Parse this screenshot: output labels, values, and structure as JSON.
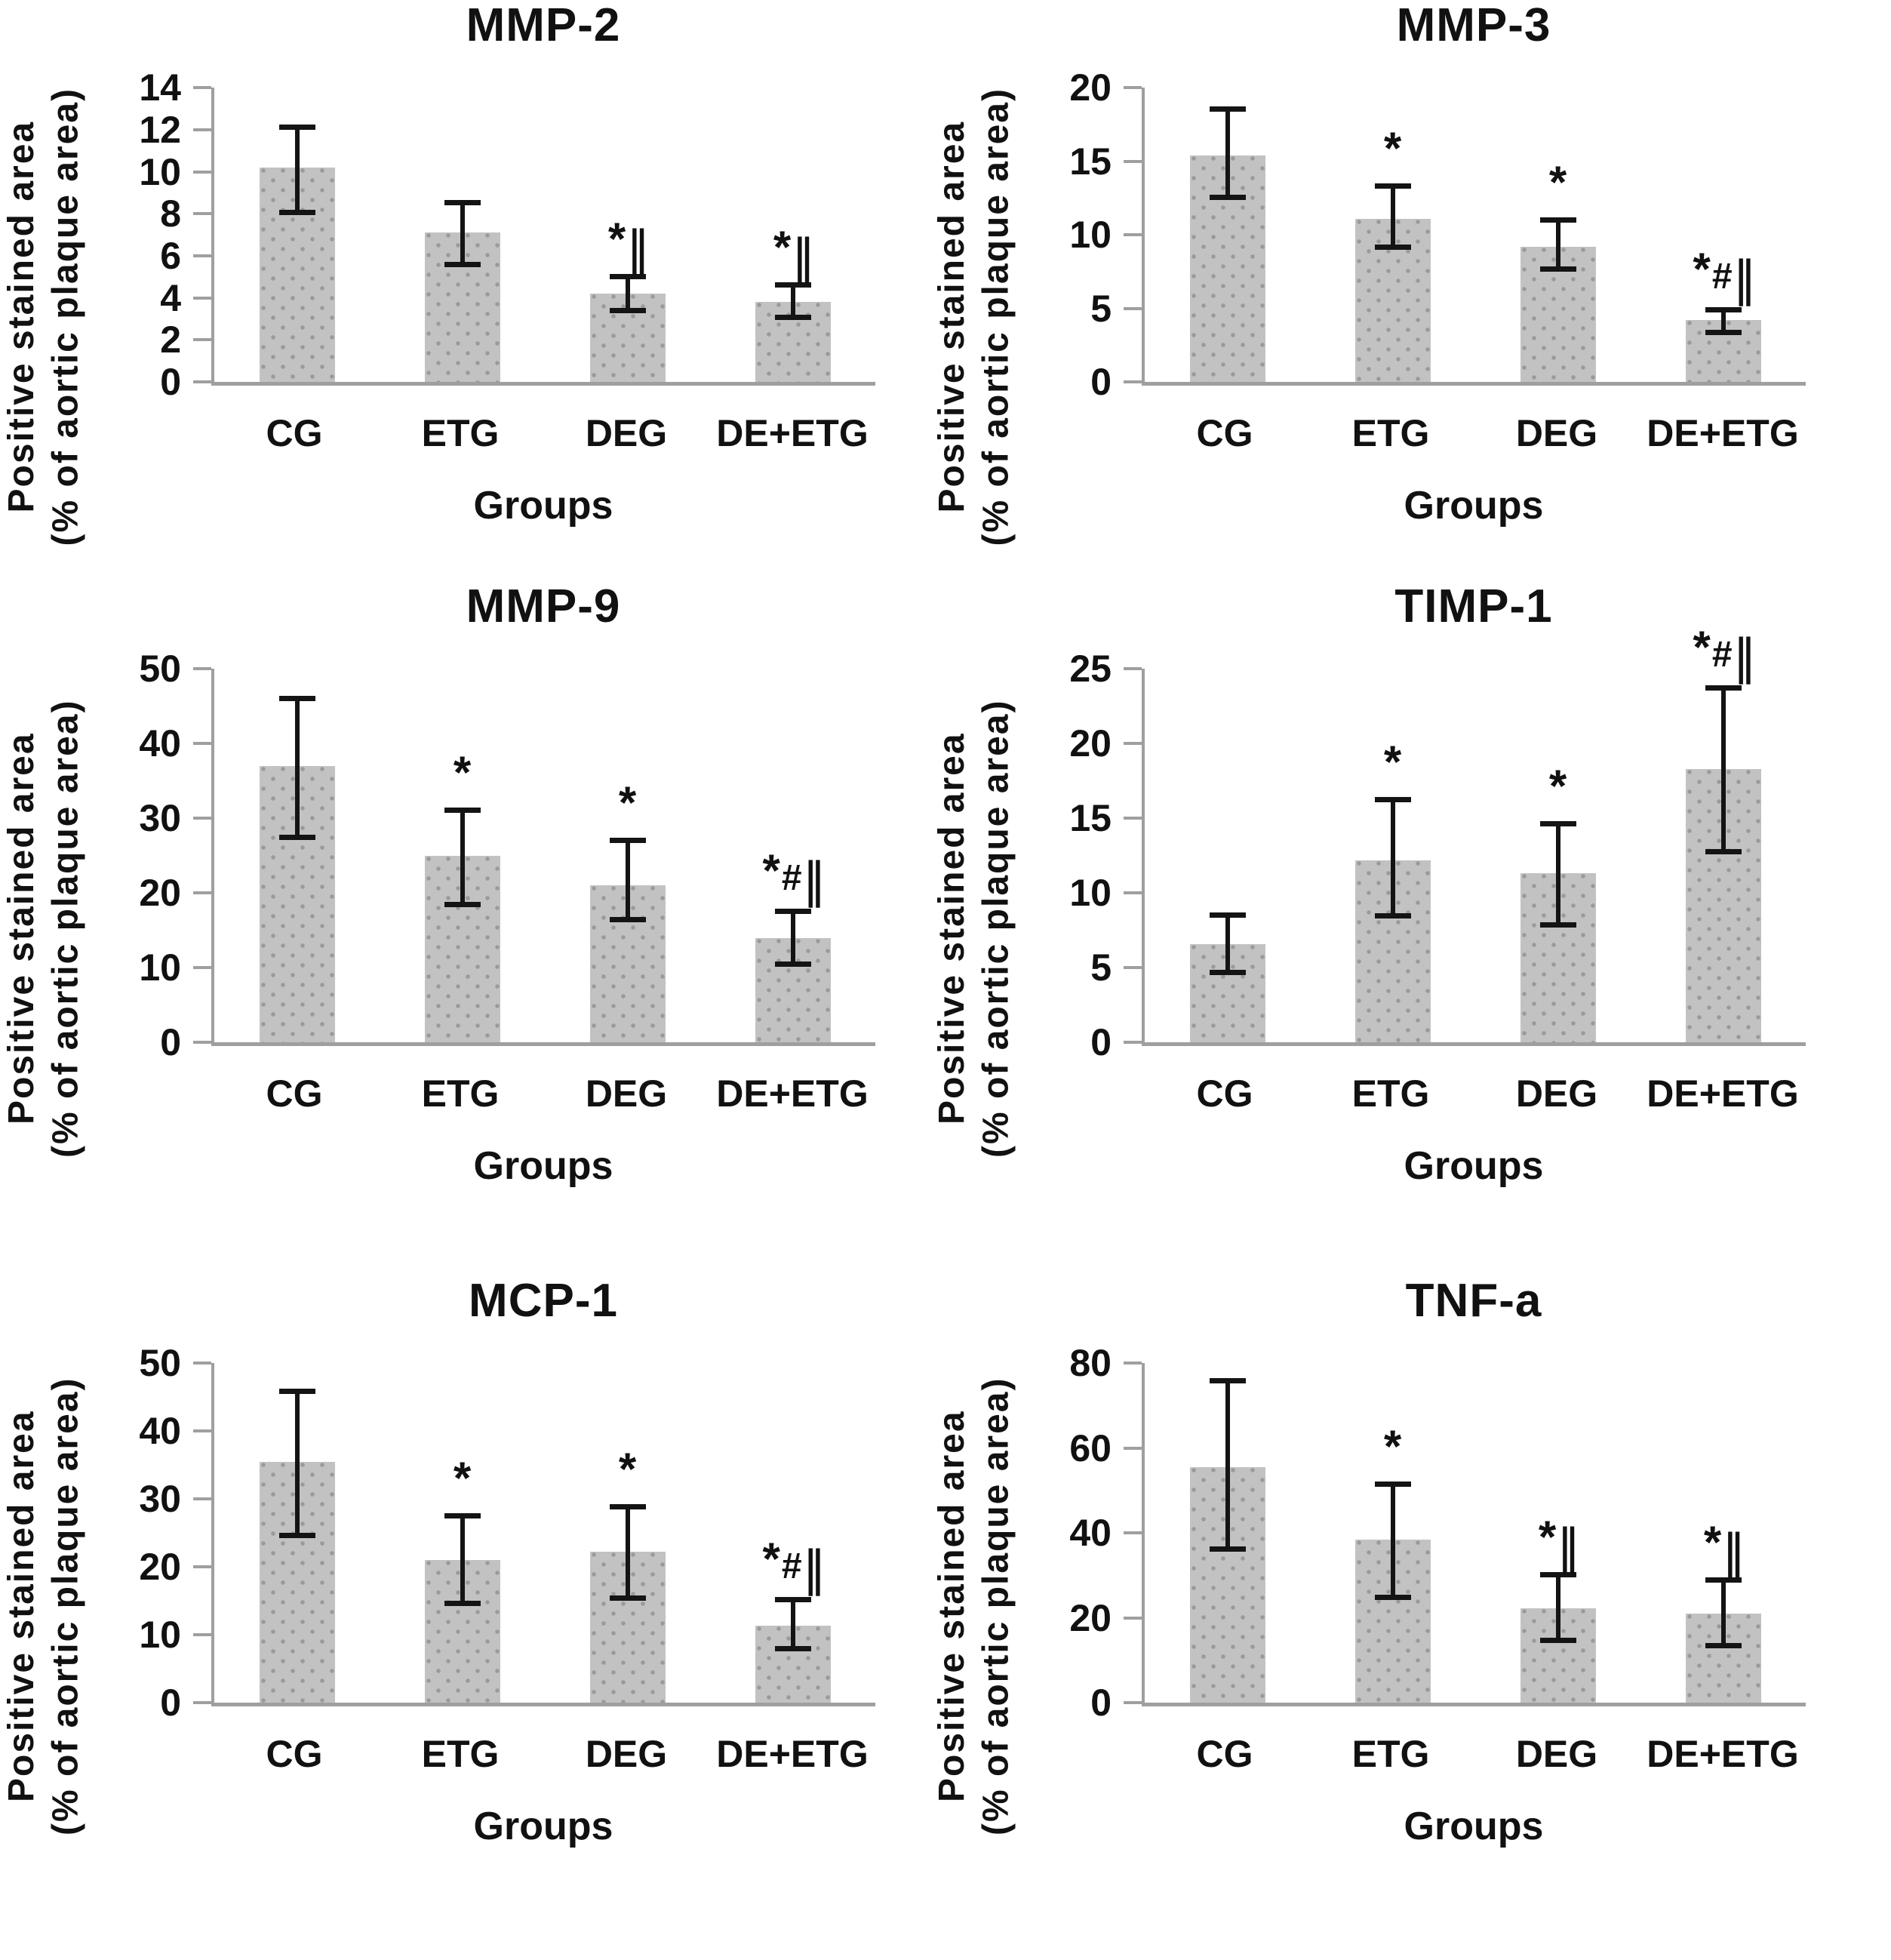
{
  "figure": {
    "background": "#ffffff",
    "description_texts": {
      "y_axis_line1": "Positive stained area",
      "y_axis_line2": "(% of aortic plaque area)",
      "x_axis": "Groups"
    }
  },
  "style": {
    "text_color": "#111111",
    "axis_color": "#9f9f9f",
    "bar_fill": "#c2c2c2",
    "bar_dot": "#9a9a9a",
    "error_color": "#141414"
  },
  "chart_data": [
    {
      "type": "bar",
      "title": "MMP-2",
      "ylabel_line1": "Positive stained area",
      "ylabel_line2": "(% of aortic plaque area)",
      "xlabel": "Groups",
      "categories": [
        "CG",
        "ETG",
        "DEG",
        "DE+ETG"
      ],
      "values": [
        10.2,
        7.1,
        4.2,
        3.8
      ],
      "error_low": [
        8.1,
        5.6,
        3.4,
        3.1
      ],
      "error_high": [
        12.1,
        8.5,
        5.0,
        4.6
      ],
      "annotations": [
        "",
        "",
        "*||",
        "*||"
      ],
      "ylim": [
        0,
        14
      ],
      "yticks": [
        0,
        2,
        4,
        6,
        8,
        10,
        12,
        14
      ],
      "grid": false,
      "legend": "none"
    },
    {
      "type": "bar",
      "title": "MMP-3",
      "ylabel_line1": "Positive stained area",
      "ylabel_line2": "(% of aortic plaque area)",
      "xlabel": "Groups",
      "categories": [
        "CG",
        "ETG",
        "DEG",
        "DE+ETG"
      ],
      "values": [
        15.4,
        11.1,
        9.2,
        4.2
      ],
      "error_low": [
        12.6,
        9.2,
        7.7,
        3.4
      ],
      "error_high": [
        18.5,
        13.3,
        11.0,
        4.9
      ],
      "annotations": [
        "",
        "*",
        "*",
        "*#||"
      ],
      "ylim": [
        0,
        20
      ],
      "yticks": [
        0,
        5,
        10,
        15,
        20
      ],
      "grid": false,
      "legend": "none"
    },
    {
      "type": "bar",
      "title": "MMP-9",
      "ylabel_line1": "Positive stained area",
      "ylabel_line2": "(% of aortic plaque area)",
      "xlabel": "Groups",
      "categories": [
        "CG",
        "ETG",
        "DEG",
        "DE+ETG"
      ],
      "values": [
        37,
        25,
        21,
        14
      ],
      "error_low": [
        27.5,
        18.5,
        16.5,
        10.5
      ],
      "error_high": [
        46,
        31,
        27,
        17.5
      ],
      "annotations": [
        "",
        "*",
        "*",
        "*#||"
      ],
      "ylim": [
        0,
        50
      ],
      "yticks": [
        0,
        10,
        20,
        30,
        40,
        50
      ],
      "grid": false,
      "legend": "none"
    },
    {
      "type": "bar",
      "title": "TIMP-1",
      "ylabel_line1": "Positive stained area",
      "ylabel_line2": "(% of aortic plaque area)",
      "xlabel": "Groups",
      "categories": [
        "CG",
        "ETG",
        "DEG",
        "DE+ETG"
      ],
      "values": [
        6.6,
        12.2,
        11.3,
        18.3
      ],
      "error_low": [
        4.7,
        8.5,
        7.9,
        12.8
      ],
      "error_high": [
        8.5,
        16.2,
        14.6,
        23.7
      ],
      "annotations": [
        "",
        "*",
        "*",
        "*#||"
      ],
      "ylim": [
        0,
        25
      ],
      "yticks": [
        0,
        5,
        10,
        15,
        20,
        25
      ],
      "grid": false,
      "legend": "none"
    },
    {
      "type": "bar",
      "title": "MCP-1",
      "ylabel_line1": "Positive stained area",
      "ylabel_line2": "(% of aortic plaque area)",
      "xlabel": "Groups",
      "categories": [
        "CG",
        "ETG",
        "DEG",
        "DE+ETG"
      ],
      "values": [
        35.5,
        21,
        22.3,
        11.4
      ],
      "error_low": [
        24.7,
        14.7,
        15.5,
        8.0
      ],
      "error_high": [
        45.8,
        27.5,
        28.8,
        15.1
      ],
      "annotations": [
        "",
        "*",
        "*",
        "*#||"
      ],
      "ylim": [
        0,
        50
      ],
      "yticks": [
        0,
        10,
        20,
        30,
        40,
        50
      ],
      "grid": false,
      "legend": "none"
    },
    {
      "type": "bar",
      "title": "TNF-a",
      "ylabel_line1": "Positive stained area",
      "ylabel_line2": "(% of aortic plaque area)",
      "xlabel": "Groups",
      "categories": [
        "CG",
        "ETG",
        "DEG",
        "DE+ETG"
      ],
      "values": [
        55.5,
        38.5,
        22.2,
        21
      ],
      "error_low": [
        36.3,
        25,
        14.8,
        13.5
      ],
      "error_high": [
        75.8,
        51.5,
        30,
        28.8
      ],
      "annotations": [
        "",
        "*",
        "*||",
        "*||"
      ],
      "ylim": [
        0,
        80
      ],
      "yticks": [
        0,
        20,
        40,
        60,
        80
      ],
      "grid": false,
      "legend": "none"
    }
  ]
}
